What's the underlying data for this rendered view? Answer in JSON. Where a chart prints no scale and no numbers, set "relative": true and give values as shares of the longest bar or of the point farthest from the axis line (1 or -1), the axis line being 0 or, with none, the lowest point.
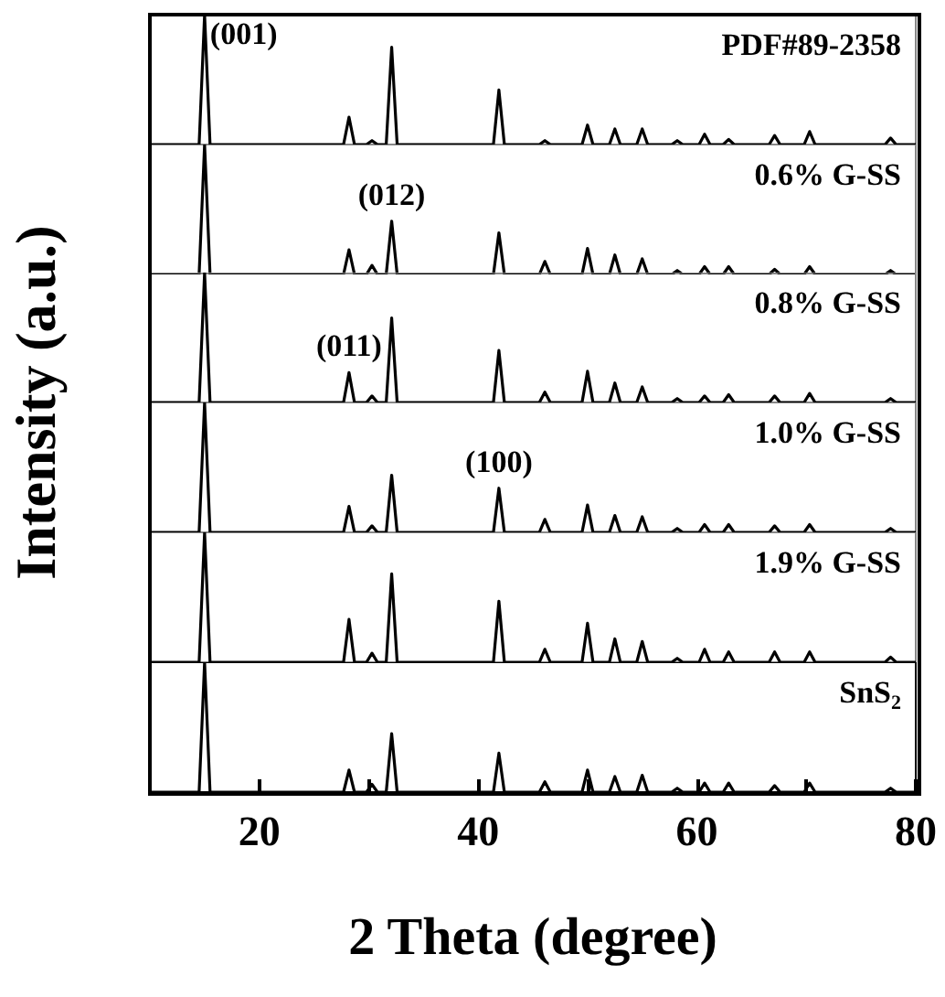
{
  "chart_data": [
    {
      "type": "line",
      "relative": true,
      "ylabel": "Intensity (a.u.)",
      "xlim": [
        10,
        80
      ],
      "tick_labels": false,
      "x": [
        10,
        14.5,
        15,
        15.5,
        27.7,
        28.2,
        28.7,
        29.8,
        30.3,
        30.8,
        31.6,
        32.1,
        32.6,
        41.4,
        41.9,
        42.4,
        45.6,
        46.1,
        46.6,
        49.5,
        50,
        50.5,
        52,
        52.5,
        53,
        54.5,
        55,
        55.5,
        57.7,
        58.2,
        58.7,
        60.2,
        60.7,
        61.2,
        62.4,
        62.9,
        63.4,
        66.6,
        67.1,
        67.6,
        69.8,
        70.3,
        70.8,
        77.2,
        77.7,
        78.2,
        80
      ],
      "series": [
        {
          "name": "PDF#89-2358",
          "color": "#000000",
          "values": [
            0,
            0,
            1,
            0,
            0,
            0.21,
            0,
            0,
            0.03,
            0,
            0,
            0.75,
            0,
            0,
            0.42,
            0,
            0,
            0.03,
            0,
            0,
            0.15,
            0,
            0,
            0.12,
            0,
            0,
            0.12,
            0,
            0,
            0.03,
            0,
            0,
            0.08,
            0,
            0,
            0.04,
            0,
            0,
            0.07,
            0,
            0,
            0.1,
            0,
            0,
            0.05,
            0,
            0
          ]
        }
      ],
      "annotations": [
        {
          "text": "(001)",
          "x": 15,
          "y": 1
        }
      ]
    },
    {
      "type": "line",
      "relative": true,
      "xlim": [
        10,
        80
      ],
      "tick_labels": false,
      "x": [
        10,
        14.5,
        15,
        15.5,
        27.7,
        28.2,
        28.7,
        29.8,
        30.3,
        30.8,
        31.6,
        32.1,
        32.6,
        41.4,
        41.9,
        42.4,
        45.6,
        46.1,
        46.6,
        49.5,
        50,
        50.5,
        52,
        52.5,
        53,
        54.5,
        55,
        55.5,
        57.7,
        58.2,
        58.7,
        60.2,
        60.7,
        61.2,
        62.4,
        62.9,
        63.4,
        66.6,
        67.1,
        67.6,
        69.8,
        70.3,
        70.8,
        77.2,
        77.7,
        78.2,
        80
      ],
      "series": [
        {
          "name": "0.6% G-SS",
          "color": "#000000",
          "values": [
            0,
            0,
            1,
            0,
            0,
            0.19,
            0,
            0,
            0.07,
            0,
            0,
            0.41,
            0,
            0,
            0.32,
            0,
            0,
            0.1,
            0,
            0,
            0.2,
            0,
            0,
            0.15,
            0,
            0,
            0.12,
            0,
            0,
            0.03,
            0,
            0,
            0.06,
            0,
            0,
            0.06,
            0,
            0,
            0.04,
            0,
            0,
            0.06,
            0,
            0,
            0.03,
            0,
            0
          ]
        }
      ],
      "annotations": [
        {
          "text": "(012)",
          "x": 32.1,
          "y": 0.41
        }
      ]
    },
    {
      "type": "line",
      "relative": true,
      "xlim": [
        10,
        80
      ],
      "tick_labels": false,
      "x": [
        10,
        14.5,
        15,
        15.5,
        27.7,
        28.2,
        28.7,
        29.8,
        30.3,
        30.8,
        31.6,
        32.1,
        32.6,
        41.4,
        41.9,
        42.4,
        45.6,
        46.1,
        46.6,
        49.5,
        50,
        50.5,
        52,
        52.5,
        53,
        54.5,
        55,
        55.5,
        57.7,
        58.2,
        58.7,
        60.2,
        60.7,
        61.2,
        62.4,
        62.9,
        63.4,
        66.6,
        67.1,
        67.6,
        69.8,
        70.3,
        70.8,
        77.2,
        77.7,
        78.2,
        80
      ],
      "series": [
        {
          "name": "0.8% G-SS",
          "color": "#000000",
          "values": [
            0,
            0,
            1,
            0,
            0,
            0.23,
            0,
            0,
            0.05,
            0,
            0,
            0.65,
            0,
            0,
            0.4,
            0,
            0,
            0.08,
            0,
            0,
            0.24,
            0,
            0,
            0.15,
            0,
            0,
            0.12,
            0,
            0,
            0.03,
            0,
            0,
            0.05,
            0,
            0,
            0.06,
            0,
            0,
            0.05,
            0,
            0,
            0.07,
            0,
            0,
            0.03,
            0,
            0
          ]
        }
      ],
      "annotations": [
        {
          "text": "(011)",
          "x": 28.2,
          "y": 0.23
        }
      ]
    },
    {
      "type": "line",
      "relative": true,
      "xlim": [
        10,
        80
      ],
      "tick_labels": false,
      "x": [
        10,
        14.5,
        15,
        15.5,
        27.7,
        28.2,
        28.7,
        29.8,
        30.3,
        30.8,
        31.6,
        32.1,
        32.6,
        41.4,
        41.9,
        42.4,
        45.6,
        46.1,
        46.6,
        49.5,
        50,
        50.5,
        52,
        52.5,
        53,
        54.5,
        55,
        55.5,
        57.7,
        58.2,
        58.7,
        60.2,
        60.7,
        61.2,
        62.4,
        62.9,
        63.4,
        66.6,
        67.1,
        67.6,
        69.8,
        70.3,
        70.8,
        77.2,
        77.7,
        78.2,
        80
      ],
      "series": [
        {
          "name": "1.0% G-SS",
          "color": "#000000",
          "values": [
            0,
            0,
            1,
            0,
            0,
            0.2,
            0,
            0,
            0.05,
            0,
            0,
            0.44,
            0,
            0,
            0.34,
            0,
            0,
            0.1,
            0,
            0,
            0.21,
            0,
            0,
            0.13,
            0,
            0,
            0.12,
            0,
            0,
            0.03,
            0,
            0,
            0.06,
            0,
            0,
            0.06,
            0,
            0,
            0.05,
            0,
            0,
            0.06,
            0,
            0,
            0.03,
            0,
            0
          ]
        }
      ],
      "annotations": [
        {
          "text": "(100)",
          "x": 41.9,
          "y": 0.34
        }
      ]
    },
    {
      "type": "line",
      "relative": true,
      "xlim": [
        10,
        80
      ],
      "tick_labels": false,
      "x": [
        10,
        14.5,
        15,
        15.5,
        27.7,
        28.2,
        28.7,
        29.8,
        30.3,
        30.8,
        31.6,
        32.1,
        32.6,
        41.4,
        41.9,
        42.4,
        45.6,
        46.1,
        46.6,
        49.5,
        50,
        50.5,
        52,
        52.5,
        53,
        54.5,
        55,
        55.5,
        57.7,
        58.2,
        58.7,
        60.2,
        60.7,
        61.2,
        62.4,
        62.9,
        63.4,
        66.6,
        67.1,
        67.6,
        69.8,
        70.3,
        70.8,
        77.2,
        77.7,
        78.2,
        80
      ],
      "series": [
        {
          "name": "1.9% G-SS",
          "color": "#000000",
          "values": [
            0,
            0,
            1,
            0,
            0,
            0.33,
            0,
            0,
            0.07,
            0,
            0,
            0.68,
            0,
            0,
            0.47,
            0,
            0,
            0.1,
            0,
            0,
            0.3,
            0,
            0,
            0.18,
            0,
            0,
            0.16,
            0,
            0,
            0.03,
            0,
            0,
            0.1,
            0,
            0,
            0.08,
            0,
            0,
            0.08,
            0,
            0,
            0.08,
            0,
            0,
            0.04,
            0,
            0
          ]
        }
      ]
    },
    {
      "type": "line",
      "relative": true,
      "xlabel": "2 Theta (degree)",
      "xlim": [
        10,
        80
      ],
      "tick_labels": "x",
      "xticks": [
        20,
        {
          "value": 30,
          "label": null
        },
        40,
        {
          "value": 50,
          "label": null
        },
        60,
        {
          "value": 70,
          "label": null
        },
        80
      ],
      "x": [
        10,
        14.5,
        15,
        15.5,
        27.7,
        28.2,
        28.7,
        29.8,
        30.3,
        30.8,
        31.6,
        32.1,
        32.6,
        41.4,
        41.9,
        42.4,
        45.6,
        46.1,
        46.6,
        49.5,
        50,
        50.5,
        52,
        52.5,
        53,
        54.5,
        55,
        55.5,
        57.7,
        58.2,
        58.7,
        60.2,
        60.7,
        61.2,
        62.4,
        62.9,
        63.4,
        66.6,
        67.1,
        67.6,
        69.8,
        70.3,
        70.8,
        77.2,
        77.7,
        78.2,
        80
      ],
      "series": [
        {
          "name": "SnS$_{2}$",
          "color": "#000000",
          "values": [
            0,
            0,
            1,
            0,
            0,
            0.17,
            0,
            0,
            0.06,
            0,
            0,
            0.45,
            0,
            0,
            0.3,
            0,
            0,
            0.08,
            0,
            0,
            0.17,
            0,
            0,
            0.12,
            0,
            0,
            0.13,
            0,
            0,
            0.03,
            0,
            0,
            0.07,
            0,
            0,
            0.07,
            0,
            0,
            0.05,
            0,
            0,
            0.07,
            0,
            0,
            0.03,
            0,
            0
          ]
        }
      ]
    }
  ]
}
